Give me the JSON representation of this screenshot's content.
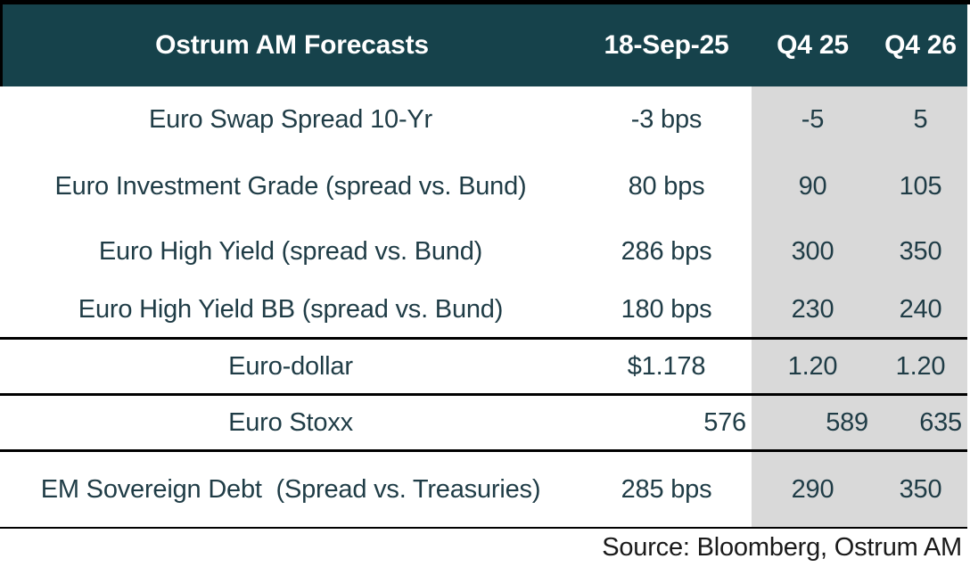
{
  "chart_data": {
    "type": "table",
    "title": "Ostrum AM Forecasts",
    "columns": [
      "18-Sep-25",
      "Q4 25",
      "Q4 26"
    ],
    "rows": [
      {
        "label": "Euro Swap Spread 10-Yr",
        "values": [
          "-3 bps",
          "-5",
          "5"
        ]
      },
      {
        "label": "Euro Investment Grade (spread vs. Bund)",
        "values": [
          "80 bps",
          "90",
          "105"
        ]
      },
      {
        "label": "Euro High Yield (spread vs. Bund)",
        "values": [
          "286 bps",
          "300",
          "350"
        ]
      },
      {
        "label": "Euro High Yield BB (spread vs. Bund)",
        "values": [
          "180 bps",
          "230",
          "240"
        ]
      },
      {
        "label": "Euro-dollar",
        "values": [
          "$1.178",
          "1.20",
          "1.20"
        ]
      },
      {
        "label": "Euro Stoxx",
        "values": [
          "576",
          "589",
          "635"
        ]
      },
      {
        "label": "EM Sovereign Debt  (Spread vs. Treasuries)",
        "values": [
          "285 bps",
          "290",
          "350"
        ]
      }
    ],
    "source": "Source: Bloomberg, Ostrum AM",
    "layout_hints": {
      "shaded_forecast_columns": [
        "Q4 25",
        "Q4 26"
      ],
      "legend": "none",
      "grid": "horizontal rules below rows 4, 5, 6 and 7"
    }
  },
  "colors": {
    "header_bg": "#16424B",
    "header_text": "#FFFFFF",
    "forecast_column_bg": "#D9D9D9",
    "body_text": "#1F3C46",
    "source_text": "#1A1A1A",
    "border": "#000000"
  }
}
